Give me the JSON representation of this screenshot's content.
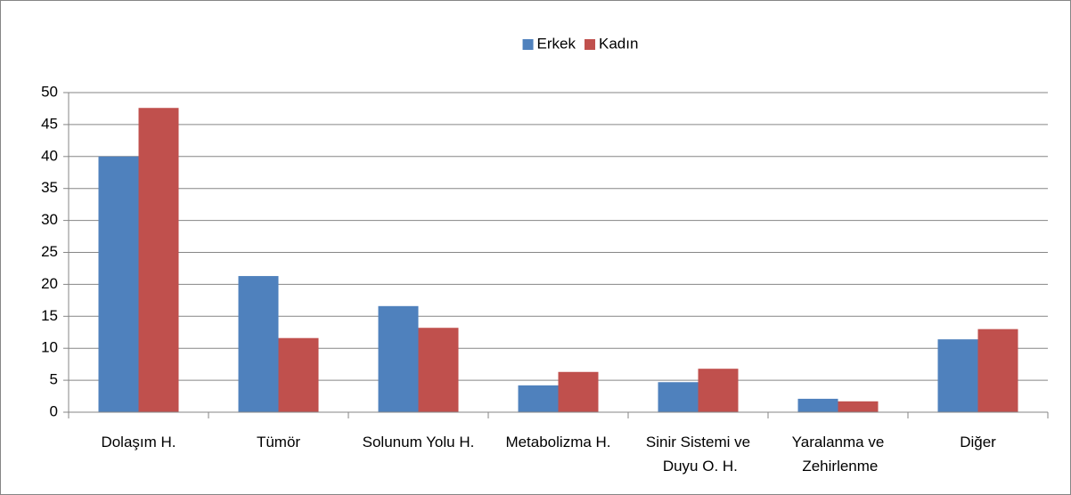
{
  "chart_data": {
    "type": "bar",
    "categories": [
      "Dolaşım H.",
      "Tümör",
      "Solunum Yolu H.",
      "Metabolizma H.",
      "Sinir Sistemi ve Duyu O. H.",
      "Yaralanma ve Zehirlenme",
      "Diğer"
    ],
    "series": [
      {
        "name": "Erkek",
        "color": "#4f81bd",
        "values": [
          40,
          21.3,
          16.6,
          4.2,
          4.7,
          2.1,
          11.4
        ]
      },
      {
        "name": "Kadın",
        "color": "#c0504d",
        "values": [
          47.6,
          11.6,
          13.2,
          6.3,
          6.8,
          1.7,
          13.0
        ]
      }
    ],
    "ylim": [
      0,
      50
    ],
    "yticks": [
      0,
      5,
      10,
      15,
      20,
      25,
      30,
      35,
      40,
      45,
      50
    ],
    "grid": true,
    "legend": "top"
  }
}
